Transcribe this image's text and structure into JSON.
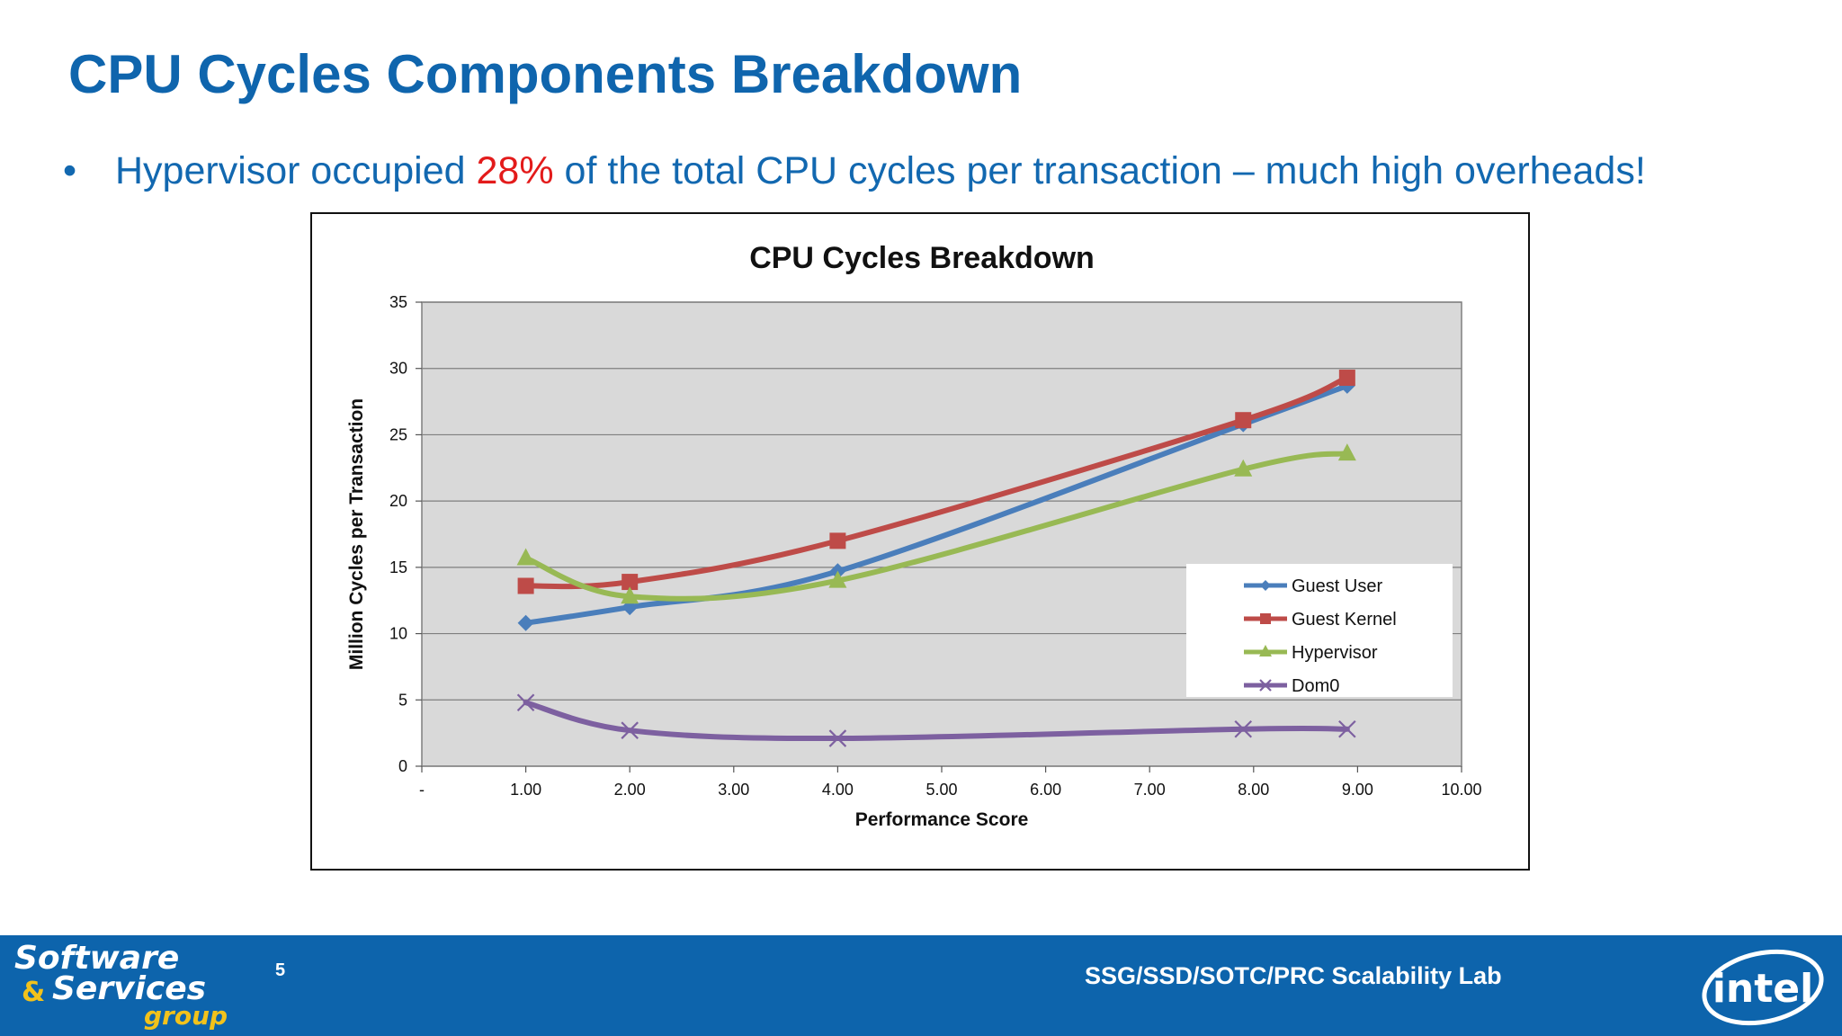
{
  "slide": {
    "title": "CPU Cycles Components Breakdown",
    "bullet": {
      "dot": "•",
      "text_before": "Hypervisor occupied ",
      "highlight": "28%",
      "text_after": " of the total CPU cycles per transaction – much high overheads!"
    }
  },
  "footer": {
    "logo_line1": "Software",
    "logo_amp": "&",
    "logo_line2": "Services",
    "logo_line3": "group",
    "page_number": "5",
    "lab_name": "SSG/SSD/SOTC/PRC Scalability Lab",
    "brand": "intel"
  },
  "colors": {
    "title": "#0f65ad",
    "highlight": "#e31b1b",
    "footer_bg": "#0d64ac",
    "plot_bg": "#d9d9d9"
  },
  "chart_data": {
    "type": "line",
    "title": "CPU Cycles Breakdown",
    "xlabel": "Performance Score",
    "ylabel": "Million Cycles per Transaction",
    "xlim": [
      0,
      10
    ],
    "ylim": [
      0,
      35
    ],
    "x_ticks": [
      "-",
      "1.00",
      "2.00",
      "3.00",
      "4.00",
      "5.00",
      "6.00",
      "7.00",
      "8.00",
      "9.00",
      "10.00"
    ],
    "y_ticks": [
      "0",
      "5",
      "10",
      "15",
      "20",
      "25",
      "30",
      "35"
    ],
    "grid": "horizontal",
    "legend_position": "right",
    "series": [
      {
        "name": "Guest User",
        "color": "#4a7ebb",
        "marker": "diamond",
        "x": [
          1.0,
          2.0,
          4.0,
          7.9,
          8.9
        ],
        "y": [
          10.8,
          12.0,
          14.7,
          25.8,
          28.7
        ]
      },
      {
        "name": "Guest Kernel",
        "color": "#be4b48",
        "marker": "square",
        "x": [
          1.0,
          2.0,
          4.0,
          7.9,
          8.9
        ],
        "y": [
          13.6,
          13.9,
          17.0,
          26.1,
          29.3
        ]
      },
      {
        "name": "Hypervisor",
        "color": "#98b954",
        "marker": "triangle",
        "x": [
          1.0,
          2.0,
          4.0,
          7.9,
          8.9
        ],
        "y": [
          15.7,
          12.8,
          14.0,
          22.4,
          23.6
        ]
      },
      {
        "name": "Dom0",
        "color": "#7d60a0",
        "marker": "x",
        "x": [
          1.0,
          2.0,
          4.0,
          7.9,
          8.9
        ],
        "y": [
          4.8,
          2.7,
          2.1,
          2.8,
          2.8
        ]
      }
    ]
  }
}
